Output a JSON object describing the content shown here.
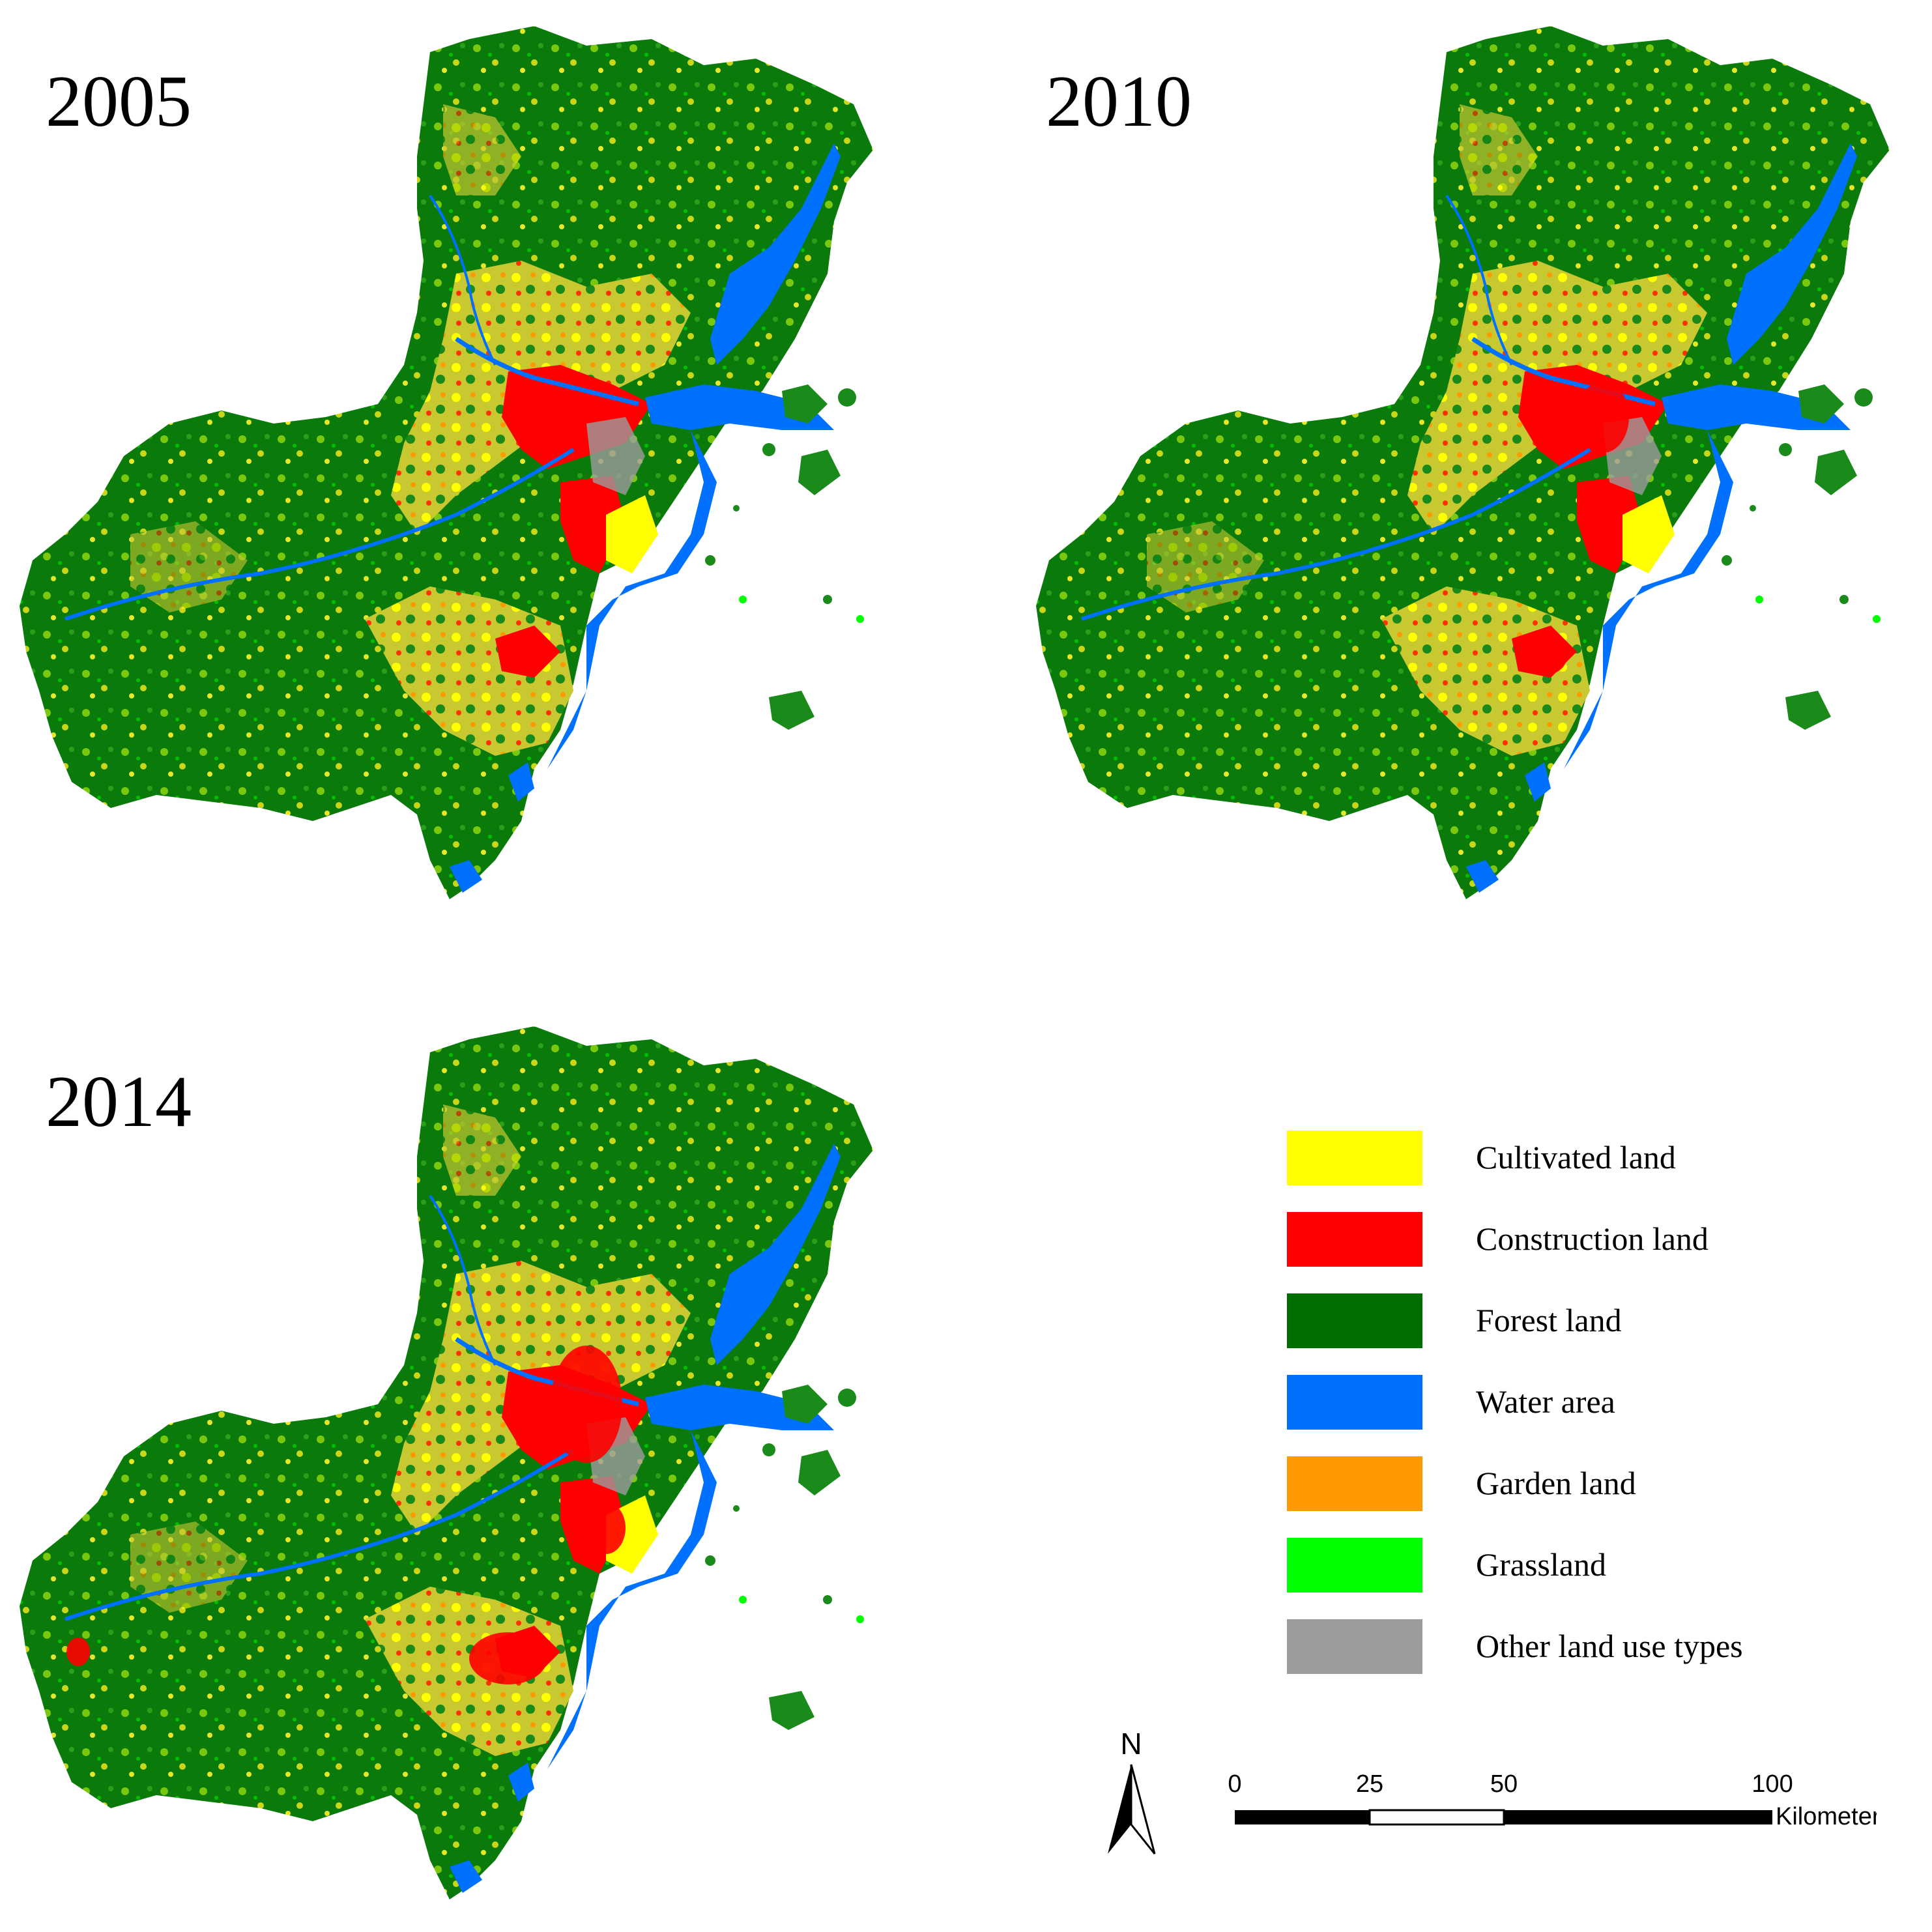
{
  "panels": [
    {
      "year": "2005"
    },
    {
      "year": "2010"
    },
    {
      "year": "2014"
    }
  ],
  "legend": {
    "items": [
      {
        "label": "Cultivated land",
        "color": "#ffff00",
        "icon": "cultivated-land-swatch"
      },
      {
        "label": "Construction land",
        "color": "#ff0000",
        "icon": "construction-land-swatch"
      },
      {
        "label": "Forest land",
        "color": "#006e00",
        "icon": "forest-land-swatch"
      },
      {
        "label": "Water area",
        "color": "#0070ff",
        "icon": "water-area-swatch"
      },
      {
        "label": "Garden land",
        "color": "#ff9900",
        "icon": "garden-land-swatch"
      },
      {
        "label": "Grassland",
        "color": "#00ff00",
        "icon": "grassland-swatch"
      },
      {
        "label": "Other land use types",
        "color": "#9c9c9c",
        "icon": "other-land-swatch"
      }
    ]
  },
  "north_arrow": {
    "label": "N"
  },
  "scale_bar": {
    "ticks": [
      "0",
      "25",
      "50",
      "100"
    ],
    "unit": "Kilometers"
  }
}
